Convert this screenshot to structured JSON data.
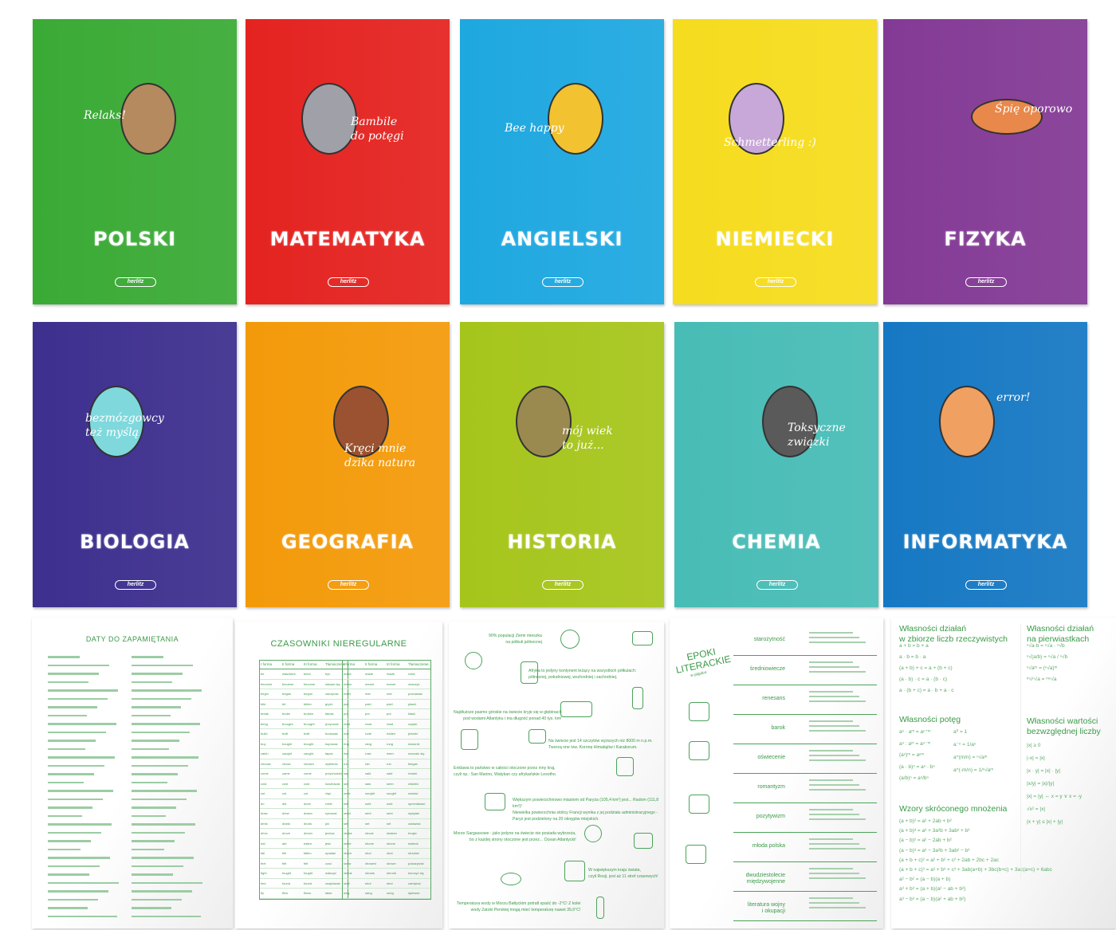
{
  "covers": [
    {
      "title": "POLSKI",
      "caption": "Relaks!",
      "color": "#3aaa35"
    },
    {
      "title": "MATEMATYKA",
      "caption": "Bambile\ndo potęgi",
      "color": "#e42320"
    },
    {
      "title": "ANGIELSKI",
      "caption": "Bee happy",
      "color": "#1ea8e0"
    },
    {
      "title": "NIEMIECKI",
      "caption": "Schmetterling :)",
      "color": "#f6dc1e"
    },
    {
      "title": "FIZYKA",
      "caption": "Śpię oporowo",
      "color": "#833a95"
    },
    {
      "title": "BIOLOGIA",
      "caption": "bezmózgowcy\nteż myślą",
      "color": "#3d2f8e"
    },
    {
      "title": "GEOGRAFIA",
      "caption": "Kręci mnie\ndzika natura",
      "color": "#f39a0a"
    },
    {
      "title": "HISTORIA",
      "caption": "mój wiek\nto już...",
      "color": "#a6c51b"
    },
    {
      "title": "CHEMIA",
      "caption": "Toksyczne\nzwiązki",
      "color": "#48bcb6"
    },
    {
      "title": "INFORMATYKA",
      "caption": "error!",
      "color": "#1678c3"
    }
  ],
  "brand": "herlitz",
  "dates_page": {
    "title": "DATY DO ZAPAMIĘTANIA"
  },
  "verbs_page": {
    "title": "CZASOWNIKI NIEREGULARNE",
    "headers": [
      "I forma",
      "II forma",
      "III forma",
      "Tłumaczenie"
    ],
    "left": [
      [
        "be",
        "was/were",
        "been",
        "być"
      ],
      [
        "become",
        "became",
        "become",
        "stawać się"
      ],
      [
        "begin",
        "began",
        "begun",
        "zaczynać"
      ],
      [
        "bite",
        "bit",
        "bitten",
        "gryźć"
      ],
      [
        "break",
        "broke",
        "broken",
        "łamać"
      ],
      [
        "bring",
        "brought",
        "brought",
        "przynosić"
      ],
      [
        "build",
        "built",
        "built",
        "budować"
      ],
      [
        "buy",
        "bought",
        "bought",
        "kupować"
      ],
      [
        "catch",
        "caught",
        "caught",
        "łapać"
      ],
      [
        "choose",
        "chose",
        "chosen",
        "wybierać"
      ],
      [
        "come",
        "came",
        "come",
        "przychodzić"
      ],
      [
        "cost",
        "cost",
        "cost",
        "kosztować"
      ],
      [
        "cut",
        "cut",
        "cut",
        "ciąć"
      ],
      [
        "do",
        "did",
        "done",
        "robić"
      ],
      [
        "draw",
        "drew",
        "drawn",
        "rysować"
      ],
      [
        "drink",
        "drank",
        "drunk",
        "pić"
      ],
      [
        "drive",
        "drove",
        "driven",
        "jechać"
      ],
      [
        "eat",
        "ate",
        "eaten",
        "jeść"
      ],
      [
        "fall",
        "fell",
        "fallen",
        "upadać"
      ],
      [
        "feel",
        "felt",
        "felt",
        "czuć"
      ],
      [
        "fight",
        "fought",
        "fought",
        "walczyć"
      ],
      [
        "find",
        "found",
        "found",
        "znajdować"
      ],
      [
        "fly",
        "flew",
        "flown",
        "latać"
      ]
    ],
    "right": [
      [
        "make",
        "made",
        "made",
        "robić"
      ],
      [
        "mean",
        "meant",
        "meant",
        "znaczyć"
      ],
      [
        "meet",
        "met",
        "met",
        "poznawać"
      ],
      [
        "pay",
        "paid",
        "paid",
        "płacić"
      ],
      [
        "put",
        "put",
        "put",
        "kłaść"
      ],
      [
        "read",
        "read",
        "read",
        "czytać"
      ],
      [
        "ride",
        "rode",
        "ridden",
        "jeździć"
      ],
      [
        "ring",
        "rang",
        "rung",
        "dzwonić"
      ],
      [
        "rise",
        "rose",
        "risen",
        "wznosić się"
      ],
      [
        "run",
        "ran",
        "run",
        "biegać"
      ],
      [
        "say",
        "said",
        "said",
        "mówić"
      ],
      [
        "see",
        "saw",
        "seen",
        "widzieć"
      ],
      [
        "seek",
        "sought",
        "sought",
        "szukać"
      ],
      [
        "sell",
        "sold",
        "sold",
        "sprzedawać"
      ],
      [
        "send",
        "sent",
        "sent",
        "wysyłać"
      ],
      [
        "set",
        "set",
        "set",
        "ustawiać"
      ],
      [
        "shake",
        "shook",
        "shaken",
        "trząść"
      ],
      [
        "shine",
        "shone",
        "shone",
        "świecić"
      ],
      [
        "shoot",
        "shot",
        "shot",
        "strzelać"
      ],
      [
        "show",
        "showed",
        "shown",
        "pokazywać"
      ],
      [
        "shrink",
        "shrank",
        "shrunk",
        "kurczyć się"
      ],
      [
        "shut",
        "shut",
        "shut",
        "zamykać"
      ],
      [
        "sing",
        "sang",
        "sung",
        "śpiewać"
      ]
    ]
  },
  "geo_page": {
    "facts": [
      "90% populacji Ziemi mieszka\nna półkuli północnej",
      "Afryka to jedyny kontynent leżący na wszystkich półkulach:\npółnocnej, południowej, wschodniej i zachodniej.",
      "Najdłuższe pasmo górskie na świecie kryje się w głębinach\npod wodami Atlantyku i ma długość ponad 40 tys. km!",
      "Na świecie jest 14 szczytów wyższych niż 8000 m n.p.m.\nTworzą one tzw. Koronę Himalajów i Karakorum.",
      "Enklawa to państwo w całości otoczone przez inny kraj,\nczyli np.: San Marino, Watykan czy afrykańskie Lesotho.",
      "Większym powierzchniowo miastem od Paryża (105,4 km²) jest... Radom (111,8 km²)!\nNiewielka powierzchnia stolicy Francji wynika z jej podziału administracyjnego -\nParyż jest podzielony na 20 okręgów miejskich.",
      "Morze Sargassowe - jako jedyne na świecie nie posiada wybrzeża,\nbo z każdej strony otoczone jest przez... Ocean Atlantycki!",
      "W największym kraju świata,\nczyli Rosji, jest aż 11 stref czasowych!",
      "Temperatura wody w Morzu Bałtyckim potrafi spaść do -2°C! Z kolei\nwody Zatoki Perskiej mogą mieć temperaturę nawet 35,6°C!"
    ]
  },
  "lit_page": {
    "title": "EPOKI\nLITERACKIE",
    "subtitle": "w pigułce",
    "epochs": [
      "starożytność",
      "średniowiecze",
      "renesans",
      "barok",
      "oświecenie",
      "romantyzm",
      "pozytywizm",
      "młoda polska",
      "dwudziestolecie\nmiędzywojenne",
      "literatura wojny\ni okupacji"
    ]
  },
  "math_page": {
    "s1": {
      "title": "Własności działań\nw zbiorze liczb rzeczywistych",
      "f": [
        "a + b = b + a",
        "a · b = b · a",
        "(a + b) + c = a + (b + c)",
        "(a · b) · c = a · (b · c)",
        "a · (b + c) = a · b + a · c"
      ]
    },
    "s2": {
      "title": "Własności działań\nna pierwiastkach",
      "f": [
        "ⁿ√a·b = ⁿ√a · ⁿ√b",
        "ⁿ√(a/b) = ⁿ√a / ⁿ√b",
        "ⁿ√aᵐ = (ⁿ√a)ᵐ",
        "ᵐ√ⁿ√a = ᵐⁿ√a"
      ]
    },
    "s3": {
      "title": "Własności potęg",
      "f": [
        "aⁿ · aᵐ = aⁿ⁺ᵐ",
        "aⁿ : aᵐ = aⁿ⁻ᵐ",
        "(aⁿ)ᵐ = aⁿᵐ",
        "(a · b)ⁿ = aⁿ · bⁿ",
        "(a/b)ⁿ = aⁿ/bⁿ"
      ],
      "g": [
        "a⁰ = 1",
        "a⁻ⁿ = 1/aⁿ",
        "a^(m/n) = ⁿ√aᵐ",
        "a^(-m/n) = 1/ⁿ√aᵐ"
      ]
    },
    "s4": {
      "title": "Własności wartości\nbezwzględnej liczby",
      "f": [
        "|x| ≥ 0",
        "|-x| = |x|",
        "|x · y| = |x| · |y|",
        "|x/y| = |x|/|y|",
        "|x| = |y| ⇔ x = y ∨ x = -y",
        "√x² = |x|",
        "|x + y| ≤ |x| + |y|"
      ]
    },
    "s5": {
      "title": "Wzory skróconego mnożenia",
      "f": [
        "(a + b)² = a² + 2ab + b²",
        "(a + b)³ = a³ + 3a²b + 3ab² + b³",
        "(a − b)² = a² − 2ab + b²",
        "(a − b)³ = a³ − 3a²b + 3ab² − b³",
        "(a + b + c)² = a² + b² + c² + 2ab + 2bc + 2ac",
        "(a + b + c)³ = a³ + b³ + c³ + 3ab(a+b) + 3bc(b+c) + 3ac(a+c) + 6abc",
        "a² − b² = (a − b)(a + b)",
        "a³ + b³ = (a + b)(a² − ab + b²)",
        "a³ − b³ = (a − b)(a² + ab + b²)"
      ]
    }
  }
}
